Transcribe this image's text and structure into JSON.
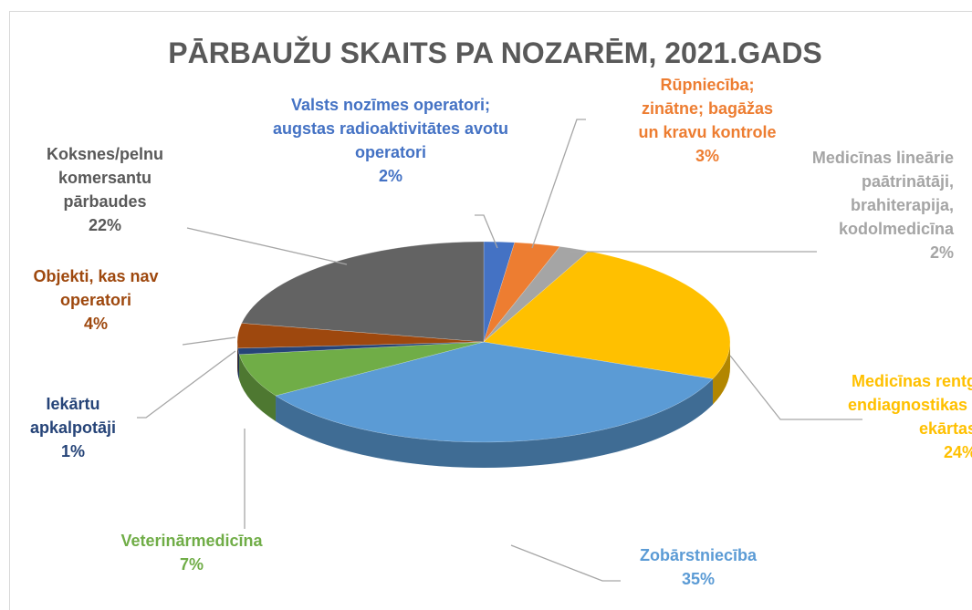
{
  "chart_data": {
    "type": "pie3d",
    "title": "PĀRBAUŽU SKAITS PA NOZARĒM, 2021.GADS",
    "categories": [
      "Valsts nozīmes operatori; augstas radioaktivitātes avotu operatori",
      "Rūpniecība; zinātne; bagāžas un kravu kontrole",
      "Medicīnas lineārie paātrinātāji, brahiterapija, kodolmedicīna",
      "Medicīnas rentgendiagnostikas iekārtas",
      "Zobārstniecība",
      "Veterinārmedicīna",
      "Iekārtu apkalpotāji",
      "Objekti, kas nav operatori",
      "Koksnes/pelnu komersantu pārbaudes"
    ],
    "values": [
      2,
      3,
      2,
      24,
      35,
      7,
      1,
      4,
      22
    ],
    "value_labels": [
      "2%",
      "3%",
      "2%",
      "24%",
      "35%",
      "7%",
      "1%",
      "4%",
      "22%"
    ],
    "colors": [
      "#4472c4",
      "#ed7d31",
      "#a5a5a5",
      "#ffc000",
      "#5b9bd5",
      "#70ad47",
      "#264478",
      "#9e480e",
      "#636363"
    ]
  }
}
